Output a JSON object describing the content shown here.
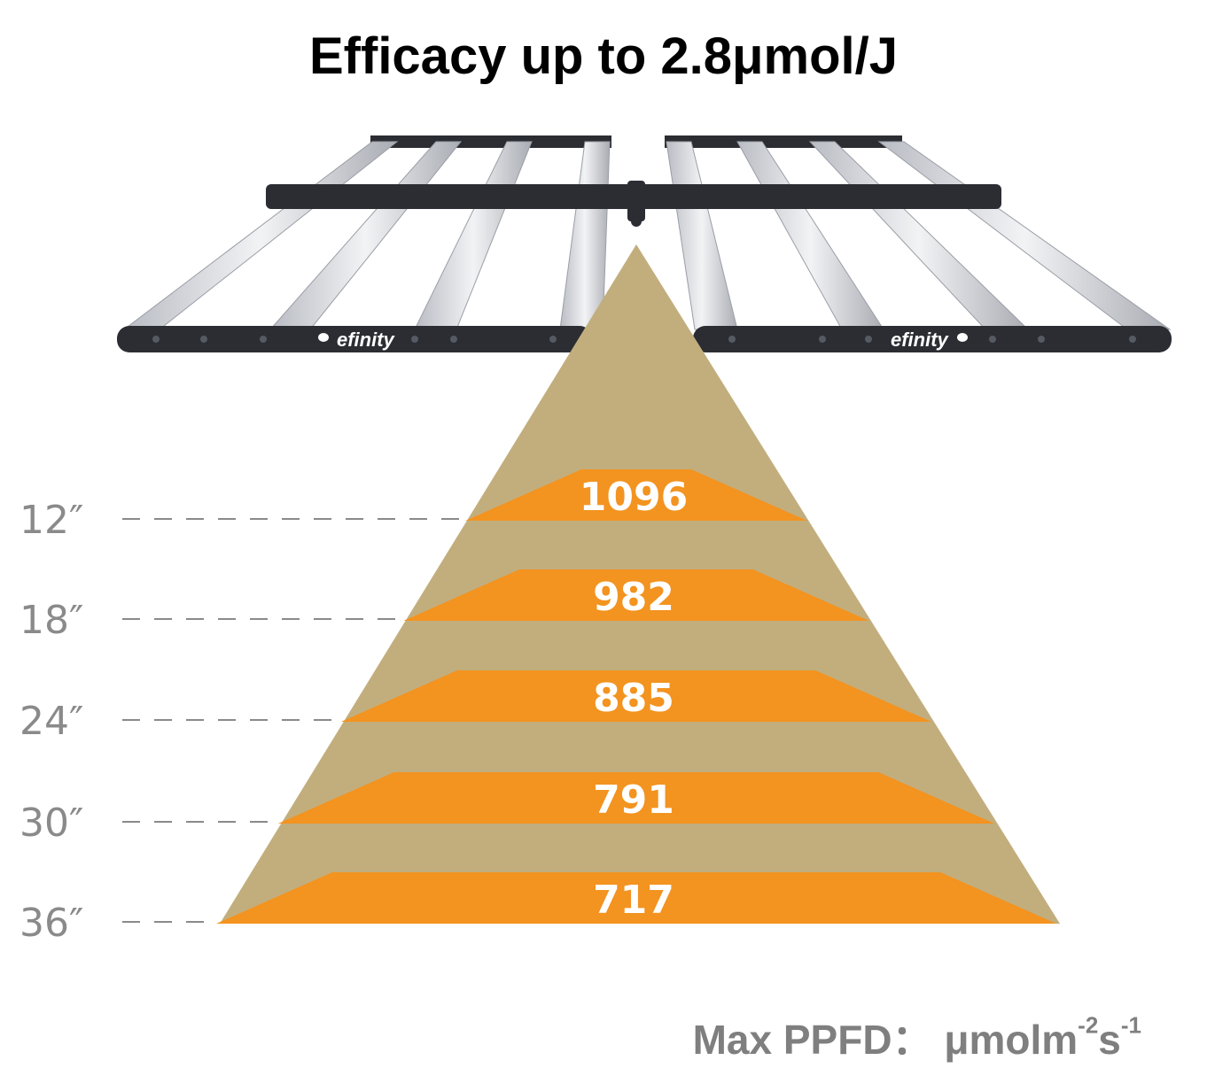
{
  "title": "Efficacy up to 2.8μmol/J",
  "product": {
    "brand": "efinity"
  },
  "footer": {
    "label": "Max PPFD：",
    "unit_base": "μmolm",
    "unit_exp1": "-2",
    "unit_mid": "s",
    "unit_exp2": "-1"
  },
  "levels": [
    {
      "distance": "12″",
      "ppfd": "1096"
    },
    {
      "distance": "18″",
      "ppfd": "982"
    },
    {
      "distance": "24″",
      "ppfd": "885"
    },
    {
      "distance": "30″",
      "ppfd": "791"
    },
    {
      "distance": "36″",
      "ppfd": "717"
    }
  ],
  "colors": {
    "pyramid": "#c2ae7d",
    "band": "#f39320",
    "fixture": "#2b2d33",
    "bar": "#d9dbe0",
    "label": "#8a8a8a"
  }
}
